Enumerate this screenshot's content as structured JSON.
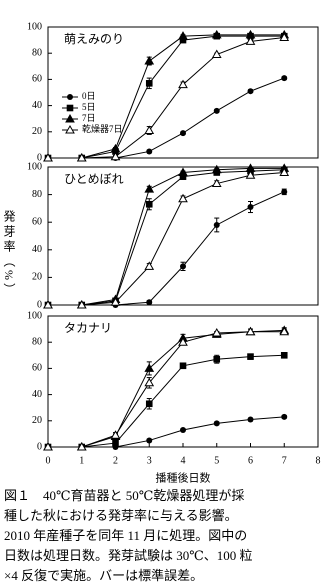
{
  "chart_data": [
    {
      "type": "line",
      "title": "萌えみのり",
      "x": [
        0,
        1,
        2,
        3,
        4,
        5,
        6,
        7
      ],
      "xlim": [
        0,
        8
      ],
      "ylim": [
        0,
        100
      ],
      "yticks": [
        0,
        20,
        40,
        60,
        80,
        100
      ],
      "legend": "left",
      "series": [
        {
          "name": "0日",
          "color": "#000000",
          "marker": "circle",
          "values": [
            0,
            0,
            0,
            5,
            19,
            36,
            51,
            61
          ],
          "errors": [
            0,
            0,
            0,
            1,
            1,
            1,
            1,
            1
          ]
        },
        {
          "name": "5日",
          "color": "#000000",
          "marker": "square",
          "values": [
            0,
            0,
            5,
            57,
            90,
            93,
            93,
            93
          ],
          "errors": [
            0,
            0,
            1,
            4,
            1,
            1,
            1,
            1
          ]
        },
        {
          "name": "7日",
          "color": "#000000",
          "marker": "triangle",
          "values": [
            0,
            0,
            7,
            74,
            93,
            94,
            94,
            94
          ],
          "errors": [
            0,
            0,
            1,
            3,
            1,
            1,
            1,
            1
          ]
        },
        {
          "name": "乾燥器7日",
          "color": "#000000",
          "marker": "triangle-open",
          "values": [
            0,
            0,
            1,
            21,
            56,
            79,
            89,
            92
          ],
          "errors": [
            0,
            0,
            1,
            3,
            2,
            1,
            1,
            1
          ]
        }
      ]
    },
    {
      "type": "line",
      "title": "ひとめぼれ",
      "ylabel": "発芽率（%）",
      "x": [
        0,
        1,
        2,
        3,
        4,
        5,
        6,
        7
      ],
      "xlim": [
        0,
        8
      ],
      "ylim": [
        0,
        100
      ],
      "yticks": [
        0,
        20,
        40,
        60,
        80,
        100
      ],
      "series": [
        {
          "color": "#000000",
          "marker": "circle",
          "values": [
            0,
            0,
            0,
            2,
            28,
            58,
            71,
            82
          ],
          "errors": [
            0,
            0,
            0,
            1,
            3,
            5,
            4,
            2
          ]
        },
        {
          "color": "#000000",
          "marker": "square",
          "values": [
            0,
            0,
            3,
            73,
            93,
            96,
            97,
            98
          ],
          "errors": [
            0,
            0,
            1,
            4,
            2,
            1,
            1,
            1
          ]
        },
        {
          "color": "#000000",
          "marker": "triangle",
          "values": [
            0,
            0,
            4,
            84,
            96,
            98,
            99,
            99
          ],
          "errors": [
            0,
            0,
            1,
            2,
            1,
            1,
            1,
            1
          ]
        },
        {
          "color": "#000000",
          "marker": "triangle-open",
          "values": [
            0,
            0,
            2,
            28,
            77,
            88,
            94,
            96
          ],
          "errors": [
            0,
            0,
            1,
            2,
            2,
            2,
            1,
            1
          ]
        }
      ]
    },
    {
      "type": "line",
      "title": "タカナリ",
      "xlabel": "播種後日数",
      "x": [
        0,
        1,
        2,
        3,
        4,
        5,
        6,
        7
      ],
      "xlim": [
        0,
        8
      ],
      "xticks": [
        0,
        1,
        2,
        3,
        4,
        5,
        6,
        7,
        8
      ],
      "ylim": [
        0,
        100
      ],
      "yticks": [
        0,
        20,
        40,
        60,
        80,
        100
      ],
      "series": [
        {
          "color": "#000000",
          "marker": "circle",
          "values": [
            0,
            0,
            0,
            5,
            13,
            18,
            21,
            23
          ],
          "errors": [
            0,
            0,
            0,
            1,
            1,
            1,
            1,
            1
          ]
        },
        {
          "color": "#000000",
          "marker": "square",
          "values": [
            0,
            0,
            3,
            33,
            62,
            67,
            69,
            70
          ],
          "errors": [
            0,
            0,
            2,
            4,
            2,
            3,
            2,
            2
          ]
        },
        {
          "color": "#000000",
          "marker": "triangle",
          "values": [
            0,
            0,
            8,
            60,
            83,
            86,
            88,
            89
          ],
          "errors": [
            0,
            0,
            2,
            5,
            3,
            2,
            2,
            2
          ]
        },
        {
          "color": "#000000",
          "marker": "triangle-open",
          "values": [
            0,
            0,
            9,
            49,
            80,
            87,
            88,
            88
          ],
          "errors": [
            0,
            0,
            2,
            4,
            2,
            1,
            2,
            2
          ]
        }
      ]
    }
  ],
  "caption": [
    "図１　40℃育苗器と 50℃乾燥器処理が採",
    "種した秋における発芽率に与える影響。",
    "2010 年産種子を同年 11 月に処理。図中の",
    "日数は処理日数。発芽試験は 30℃、100 粒",
    "×4 反復で実施。バーは標準誤差。"
  ]
}
